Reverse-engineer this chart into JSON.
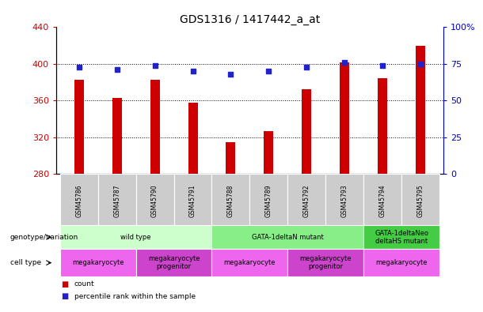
{
  "title": "GDS1316 / 1417442_a_at",
  "samples": [
    "GSM45786",
    "GSM45787",
    "GSM45790",
    "GSM45791",
    "GSM45788",
    "GSM45789",
    "GSM45792",
    "GSM45793",
    "GSM45794",
    "GSM45795"
  ],
  "counts": [
    383,
    363,
    383,
    358,
    315,
    327,
    372,
    402,
    384,
    420
  ],
  "percentiles": [
    73,
    71,
    74,
    70,
    68,
    70,
    73,
    76,
    74,
    75
  ],
  "ylim_left": [
    280,
    440
  ],
  "ylim_right": [
    0,
    100
  ],
  "yticks_left": [
    280,
    320,
    360,
    400,
    440
  ],
  "yticks_right": [
    0,
    25,
    50,
    75,
    100
  ],
  "bar_color": "#cc0000",
  "dot_color": "#2222cc",
  "genotype_groups": [
    {
      "label": "wild type",
      "start": 0,
      "end": 4,
      "color": "#ccffcc"
    },
    {
      "label": "GATA-1deltaN mutant",
      "start": 4,
      "end": 8,
      "color": "#88ee88"
    },
    {
      "label": "GATA-1deltaNeo\ndeltaHS mutant",
      "start": 8,
      "end": 10,
      "color": "#44cc44"
    }
  ],
  "cell_type_groups": [
    {
      "label": "megakaryocyte",
      "start": 0,
      "end": 2,
      "color": "#ee66ee"
    },
    {
      "label": "megakaryocyte\nprogenitor",
      "start": 2,
      "end": 4,
      "color": "#cc44cc"
    },
    {
      "label": "megakaryocyte",
      "start": 4,
      "end": 6,
      "color": "#ee66ee"
    },
    {
      "label": "megakaryocyte\nprogenitor",
      "start": 6,
      "end": 8,
      "color": "#cc44cc"
    },
    {
      "label": "megakaryocyte",
      "start": 8,
      "end": 10,
      "color": "#ee66ee"
    }
  ],
  "left_label_color": "#cc0000",
  "right_label_color": "#0000cc",
  "tick_label_bg": "#cccccc",
  "bar_width": 0.25
}
